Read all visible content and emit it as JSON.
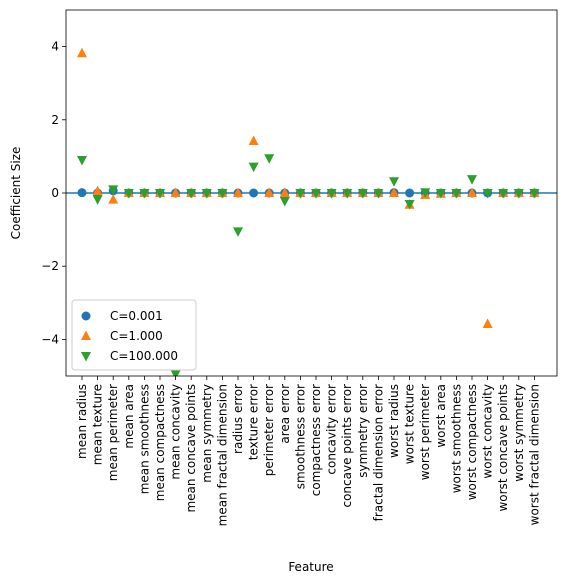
{
  "chart_data": {
    "type": "scatter",
    "title": "",
    "xlabel": "Feature",
    "ylabel": "Coefficient Size",
    "ylim": [
      -5,
      5
    ],
    "yticks": [
      4,
      2,
      0,
      -2,
      -4
    ],
    "ytick_labels": [
      "4",
      "2",
      "0",
      "−2",
      "−4"
    ],
    "grid": false,
    "legend_position": "lower-left",
    "zero_line": 0,
    "zero_line_color": "#1f77b4",
    "categories": [
      "mean radius",
      "mean texture",
      "mean perimeter",
      "mean area",
      "mean smoothness",
      "mean compactness",
      "mean concavity",
      "mean concave points",
      "mean symmetry",
      "mean fractal dimension",
      "radius error",
      "texture error",
      "perimeter error",
      "area error",
      "smoothness error",
      "compactness error",
      "concavity error",
      "concave points error",
      "symmetry error",
      "fractal dimension error",
      "worst radius",
      "worst texture",
      "worst perimeter",
      "worst area",
      "worst smoothness",
      "worst compactness",
      "worst concavity",
      "worst concave points",
      "worst symmetry",
      "worst fractal dimension"
    ],
    "series": [
      {
        "name": "C=0.001",
        "marker": "circle",
        "color": "#1f77b4",
        "values": [
          0.01,
          0.0,
          0.06,
          0.0,
          0.0,
          0.0,
          0.0,
          0.0,
          0.0,
          0.0,
          0.0,
          0.0,
          0.0,
          0.0,
          0.0,
          0.0,
          0.0,
          0.0,
          0.0,
          0.0,
          0.01,
          0.0,
          0.0,
          0.0,
          0.0,
          0.0,
          0.0,
          0.0,
          0.0,
          0.0
        ]
      },
      {
        "name": "C=1.000",
        "marker": "triangle-up",
        "color": "#ff7f0e",
        "values": [
          3.82,
          0.05,
          -0.18,
          0.0,
          0.0,
          0.0,
          0.0,
          0.0,
          0.0,
          0.0,
          0.0,
          1.42,
          0.0,
          0.0,
          0.0,
          0.0,
          0.0,
          0.0,
          0.0,
          0.0,
          0.0,
          -0.32,
          -0.05,
          -0.02,
          0.0,
          0.0,
          -3.58,
          0.0,
          0.0,
          0.0
        ]
      },
      {
        "name": "C=100.000",
        "marker": "triangle-down",
        "color": "#2ca02c",
        "values": [
          0.9,
          -0.17,
          0.1,
          0.0,
          0.0,
          0.0,
          -4.95,
          0.0,
          0.0,
          0.0,
          -1.05,
          0.72,
          0.95,
          -0.22,
          0.0,
          0.0,
          0.0,
          0.0,
          0.0,
          0.0,
          0.32,
          -0.3,
          0.02,
          0.0,
          0.0,
          0.38,
          0.0,
          0.0,
          0.0,
          0.0
        ]
      }
    ]
  }
}
